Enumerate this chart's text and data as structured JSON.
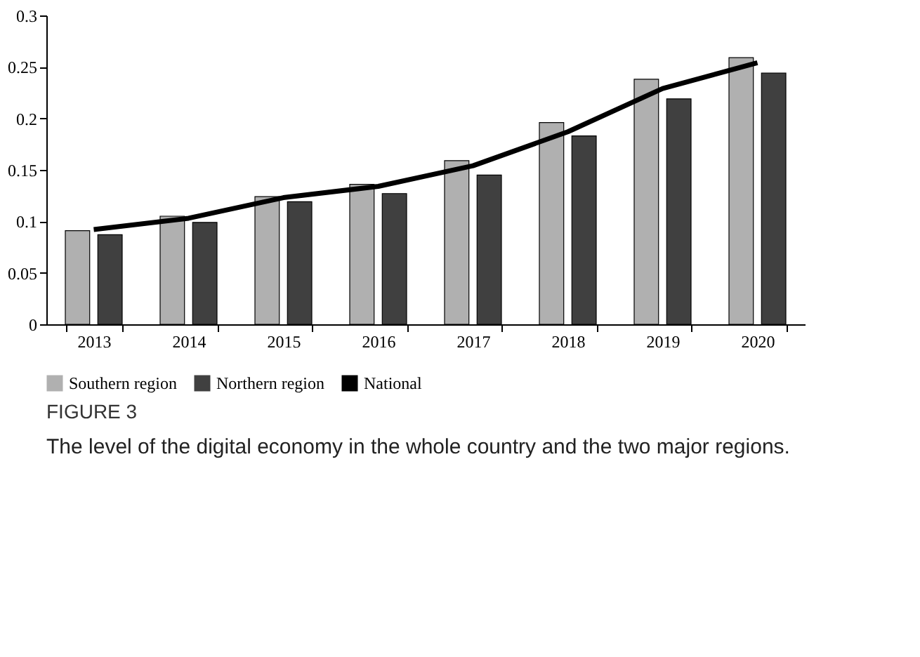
{
  "chart_data": {
    "type": "bar",
    "categories": [
      "2013",
      "2014",
      "2015",
      "2016",
      "2017",
      "2018",
      "2019",
      "2020"
    ],
    "series": [
      {
        "name": "Southern region",
        "type": "bar",
        "color": "#b0b0b0",
        "values": [
          0.091,
          0.105,
          0.124,
          0.136,
          0.159,
          0.196,
          0.238,
          0.259
        ]
      },
      {
        "name": "Northern region",
        "type": "bar",
        "color": "#404040",
        "values": [
          0.087,
          0.099,
          0.119,
          0.127,
          0.145,
          0.183,
          0.219,
          0.244
        ]
      },
      {
        "name": "National",
        "type": "line",
        "color": "#000000",
        "values": [
          0.092,
          0.103,
          0.123,
          0.134,
          0.154,
          0.187,
          0.229,
          0.254
        ]
      }
    ],
    "ylim": [
      0,
      0.3
    ],
    "yticks": [
      0,
      0.05,
      0.1,
      0.15,
      0.2,
      0.25,
      0.3
    ],
    "grid": false,
    "legend": "bottom",
    "annotations": [
      "FIGURE 3",
      "The level of the digital economy in the whole country and the two major regions."
    ]
  }
}
